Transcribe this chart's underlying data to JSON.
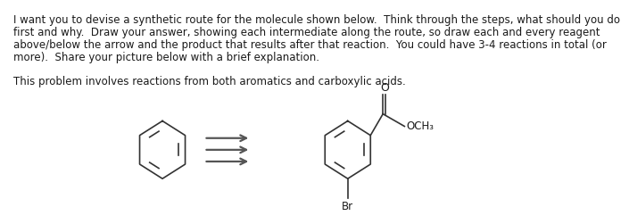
{
  "background_color": "#ffffff",
  "text_lines": [
    "I want you to devise a synthetic route for the molecule shown below.  Think through the steps, what should you do",
    "first and why.  Draw your answer, showing each intermediate along the route, so draw each and every reagent",
    "above/below the arrow and the product that results after that reaction.  You could have 3-4 reactions in total (or",
    "more).  Share your picture below with a brief explanation.",
    "",
    "This problem involves reactions from both aromatics and carboxylic acids."
  ],
  "text_fontsize": 8.5,
  "text_color": "#1a1a1a",
  "line_color": "#333333",
  "arrow_color": "#555555"
}
